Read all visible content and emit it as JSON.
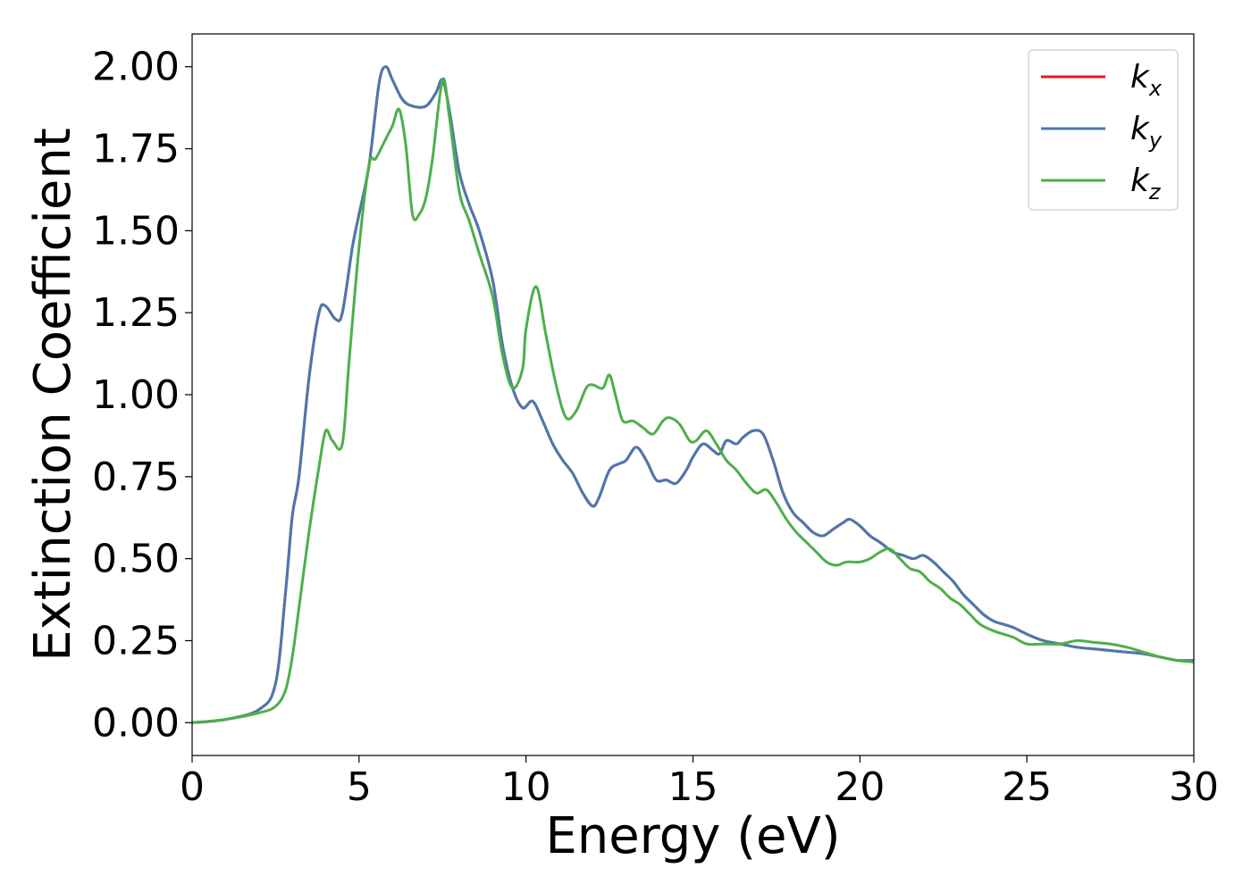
{
  "chart_data": {
    "type": "line",
    "title": "",
    "xlabel": "Energy (eV)",
    "ylabel": "Extinction Coefficient",
    "xlim": [
      0,
      30
    ],
    "ylim": [
      -0.1,
      2.1
    ],
    "x_ticks": [
      0,
      5,
      10,
      15,
      20,
      25,
      30
    ],
    "x_tick_labels": [
      "0",
      "5",
      "10",
      "15",
      "20",
      "25",
      "30"
    ],
    "y_ticks": [
      0.0,
      0.25,
      0.5,
      0.75,
      1.0,
      1.25,
      1.5,
      1.75,
      2.0
    ],
    "y_tick_labels": [
      "0.00",
      "0.25",
      "0.50",
      "0.75",
      "1.00",
      "1.25",
      "1.50",
      "1.75",
      "2.00"
    ],
    "grid": false,
    "legend_position": "top-right",
    "series": [
      {
        "name": "k_x",
        "legend_base": "k",
        "legend_sub": "x",
        "color": "#e41a1c",
        "x": [
          0,
          1,
          2,
          2.5,
          2.8,
          3.0,
          3.2,
          3.5,
          3.8,
          4.0,
          4.3,
          4.5,
          4.8,
          5.0,
          5.3,
          5.6,
          5.8,
          6.0,
          6.3,
          6.6,
          7.0,
          7.3,
          7.5,
          7.7,
          8.0,
          8.3,
          8.6,
          9.0,
          9.3,
          9.6,
          9.9,
          10.2,
          10.5,
          10.8,
          11.1,
          11.4,
          11.7,
          12.0,
          12.2,
          12.5,
          12.8,
          13.0,
          13.3,
          13.6,
          13.9,
          14.2,
          14.5,
          14.8,
          15.0,
          15.3,
          15.6,
          15.8,
          16.0,
          16.3,
          16.5,
          16.8,
          17.1,
          17.4,
          17.7,
          18.0,
          18.3,
          18.6,
          18.9,
          19.2,
          19.5,
          19.7,
          20.0,
          20.3,
          20.6,
          21.0,
          21.3,
          21.6,
          21.9,
          22.2,
          22.5,
          22.8,
          23.1,
          23.4,
          23.7,
          24.0,
          24.3,
          24.6,
          25.0,
          25.5,
          26.0,
          26.5,
          27.0,
          27.5,
          28.0,
          28.5,
          29.0,
          29.5,
          30.0
        ],
        "values": [
          0.0,
          0.01,
          0.04,
          0.12,
          0.4,
          0.63,
          0.75,
          1.05,
          1.25,
          1.27,
          1.23,
          1.25,
          1.45,
          1.55,
          1.7,
          1.95,
          2.0,
          1.96,
          1.9,
          1.88,
          1.88,
          1.92,
          1.96,
          1.87,
          1.68,
          1.58,
          1.5,
          1.35,
          1.15,
          1.02,
          0.96,
          0.98,
          0.92,
          0.85,
          0.8,
          0.76,
          0.7,
          0.66,
          0.69,
          0.77,
          0.79,
          0.8,
          0.84,
          0.8,
          0.74,
          0.74,
          0.73,
          0.77,
          0.81,
          0.85,
          0.83,
          0.82,
          0.86,
          0.85,
          0.87,
          0.89,
          0.88,
          0.8,
          0.7,
          0.64,
          0.61,
          0.58,
          0.57,
          0.59,
          0.61,
          0.62,
          0.6,
          0.57,
          0.55,
          0.52,
          0.51,
          0.5,
          0.51,
          0.49,
          0.46,
          0.43,
          0.39,
          0.36,
          0.33,
          0.31,
          0.3,
          0.29,
          0.27,
          0.25,
          0.24,
          0.23,
          0.225,
          0.22,
          0.215,
          0.21,
          0.2,
          0.19,
          0.19
        ]
      },
      {
        "name": "k_y",
        "legend_base": "k",
        "legend_sub": "y",
        "color": "#4a78b0",
        "x": [
          0,
          1,
          2,
          2.5,
          2.8,
          3.0,
          3.2,
          3.5,
          3.8,
          4.0,
          4.3,
          4.5,
          4.8,
          5.0,
          5.3,
          5.6,
          5.8,
          6.0,
          6.3,
          6.6,
          7.0,
          7.3,
          7.5,
          7.7,
          8.0,
          8.3,
          8.6,
          9.0,
          9.3,
          9.6,
          9.9,
          10.2,
          10.5,
          10.8,
          11.1,
          11.4,
          11.7,
          12.0,
          12.2,
          12.5,
          12.8,
          13.0,
          13.3,
          13.6,
          13.9,
          14.2,
          14.5,
          14.8,
          15.0,
          15.3,
          15.6,
          15.8,
          16.0,
          16.3,
          16.5,
          16.8,
          17.1,
          17.4,
          17.7,
          18.0,
          18.3,
          18.6,
          18.9,
          19.2,
          19.5,
          19.7,
          20.0,
          20.3,
          20.6,
          21.0,
          21.3,
          21.6,
          21.9,
          22.2,
          22.5,
          22.8,
          23.1,
          23.4,
          23.7,
          24.0,
          24.3,
          24.6,
          25.0,
          25.5,
          26.0,
          26.5,
          27.0,
          27.5,
          28.0,
          28.5,
          29.0,
          29.5,
          30.0
        ],
        "values": [
          0.0,
          0.01,
          0.04,
          0.12,
          0.4,
          0.63,
          0.75,
          1.05,
          1.25,
          1.27,
          1.23,
          1.25,
          1.45,
          1.55,
          1.7,
          1.95,
          2.0,
          1.96,
          1.9,
          1.88,
          1.88,
          1.92,
          1.96,
          1.87,
          1.68,
          1.58,
          1.5,
          1.35,
          1.15,
          1.02,
          0.96,
          0.98,
          0.92,
          0.85,
          0.8,
          0.76,
          0.7,
          0.66,
          0.69,
          0.77,
          0.79,
          0.8,
          0.84,
          0.8,
          0.74,
          0.74,
          0.73,
          0.77,
          0.81,
          0.85,
          0.83,
          0.82,
          0.86,
          0.85,
          0.87,
          0.89,
          0.88,
          0.8,
          0.7,
          0.64,
          0.61,
          0.58,
          0.57,
          0.59,
          0.61,
          0.62,
          0.6,
          0.57,
          0.55,
          0.52,
          0.51,
          0.5,
          0.51,
          0.49,
          0.46,
          0.43,
          0.39,
          0.36,
          0.33,
          0.31,
          0.3,
          0.29,
          0.27,
          0.25,
          0.24,
          0.23,
          0.225,
          0.22,
          0.215,
          0.21,
          0.2,
          0.19,
          0.19
        ]
      },
      {
        "name": "k_z",
        "legend_base": "k",
        "legend_sub": "z",
        "color": "#4daf4a",
        "x": [
          0,
          1,
          2,
          2.5,
          2.8,
          3.0,
          3.2,
          3.5,
          3.8,
          4.0,
          4.2,
          4.5,
          4.7,
          5.0,
          5.3,
          5.5,
          5.8,
          6.0,
          6.2,
          6.4,
          6.6,
          6.8,
          7.0,
          7.2,
          7.5,
          7.7,
          8.0,
          8.3,
          8.6,
          9.0,
          9.3,
          9.6,
          9.9,
          10.0,
          10.3,
          10.6,
          10.9,
          11.2,
          11.5,
          11.8,
          12.0,
          12.3,
          12.5,
          12.7,
          12.9,
          13.2,
          13.5,
          13.8,
          14.1,
          14.3,
          14.6,
          14.9,
          15.1,
          15.4,
          15.7,
          16.0,
          16.3,
          16.6,
          16.9,
          17.2,
          17.5,
          17.8,
          18.1,
          18.4,
          18.7,
          19.0,
          19.3,
          19.6,
          20.0,
          20.3,
          20.6,
          20.9,
          21.2,
          21.5,
          21.8,
          22.1,
          22.4,
          22.7,
          23.0,
          23.3,
          23.6,
          24.0,
          24.3,
          24.6,
          25.0,
          25.5,
          26.0,
          26.5,
          27.0,
          27.5,
          28.0,
          28.5,
          29.0,
          29.5,
          30.0
        ],
        "values": [
          0.0,
          0.01,
          0.03,
          0.05,
          0.1,
          0.2,
          0.35,
          0.58,
          0.78,
          0.89,
          0.86,
          0.85,
          1.1,
          1.45,
          1.7,
          1.72,
          1.78,
          1.82,
          1.87,
          1.76,
          1.55,
          1.55,
          1.6,
          1.72,
          1.96,
          1.85,
          1.62,
          1.53,
          1.43,
          1.3,
          1.12,
          1.02,
          1.08,
          1.2,
          1.33,
          1.18,
          1.03,
          0.93,
          0.95,
          1.02,
          1.03,
          1.02,
          1.06,
          0.99,
          0.92,
          0.92,
          0.9,
          0.88,
          0.92,
          0.93,
          0.91,
          0.86,
          0.86,
          0.89,
          0.85,
          0.8,
          0.77,
          0.73,
          0.7,
          0.71,
          0.67,
          0.62,
          0.58,
          0.55,
          0.52,
          0.49,
          0.48,
          0.49,
          0.49,
          0.5,
          0.52,
          0.53,
          0.5,
          0.47,
          0.46,
          0.43,
          0.41,
          0.38,
          0.36,
          0.33,
          0.3,
          0.28,
          0.27,
          0.26,
          0.24,
          0.24,
          0.24,
          0.25,
          0.245,
          0.24,
          0.23,
          0.215,
          0.2,
          0.19,
          0.185
        ]
      }
    ]
  }
}
